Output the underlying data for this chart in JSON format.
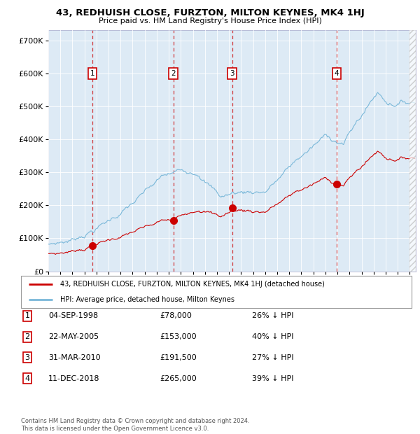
{
  "title": "43, REDHUISH CLOSE, FURZTON, MILTON KEYNES, MK4 1HJ",
  "subtitle": "Price paid vs. HM Land Registry's House Price Index (HPI)",
  "hpi_color": "#7ab8d9",
  "price_color": "#cc0000",
  "plot_bg_color": "#ddeaf5",
  "transactions": [
    {
      "num": 1,
      "date_label": "04-SEP-1998",
      "date_x": 1998.67,
      "price": 78000,
      "pct": "26% ↓ HPI"
    },
    {
      "num": 2,
      "date_label": "22-MAY-2005",
      "date_x": 2005.38,
      "price": 153000,
      "pct": "40% ↓ HPI"
    },
    {
      "num": 3,
      "date_label": "31-MAR-2010",
      "date_x": 2010.25,
      "price": 191500,
      "pct": "27% ↓ HPI"
    },
    {
      "num": 4,
      "date_label": "11-DEC-2018",
      "date_x": 2018.94,
      "price": 265000,
      "pct": "39% ↓ HPI"
    }
  ],
  "ylim": [
    0,
    730000
  ],
  "xlim": [
    1995.0,
    2025.5
  ],
  "yticks": [
    0,
    100000,
    200000,
    300000,
    400000,
    500000,
    600000,
    700000
  ],
  "ytick_labels": [
    "£0",
    "£100K",
    "£200K",
    "£300K",
    "£400K",
    "£500K",
    "£600K",
    "£700K"
  ],
  "legend_label_red": "43, REDHUISH CLOSE, FURZTON, MILTON KEYNES, MK4 1HJ (detached house)",
  "legend_label_blue": "HPI: Average price, detached house, Milton Keynes",
  "footer": "Contains HM Land Registry data © Crown copyright and database right 2024.\nThis data is licensed under the Open Government Licence v3.0."
}
